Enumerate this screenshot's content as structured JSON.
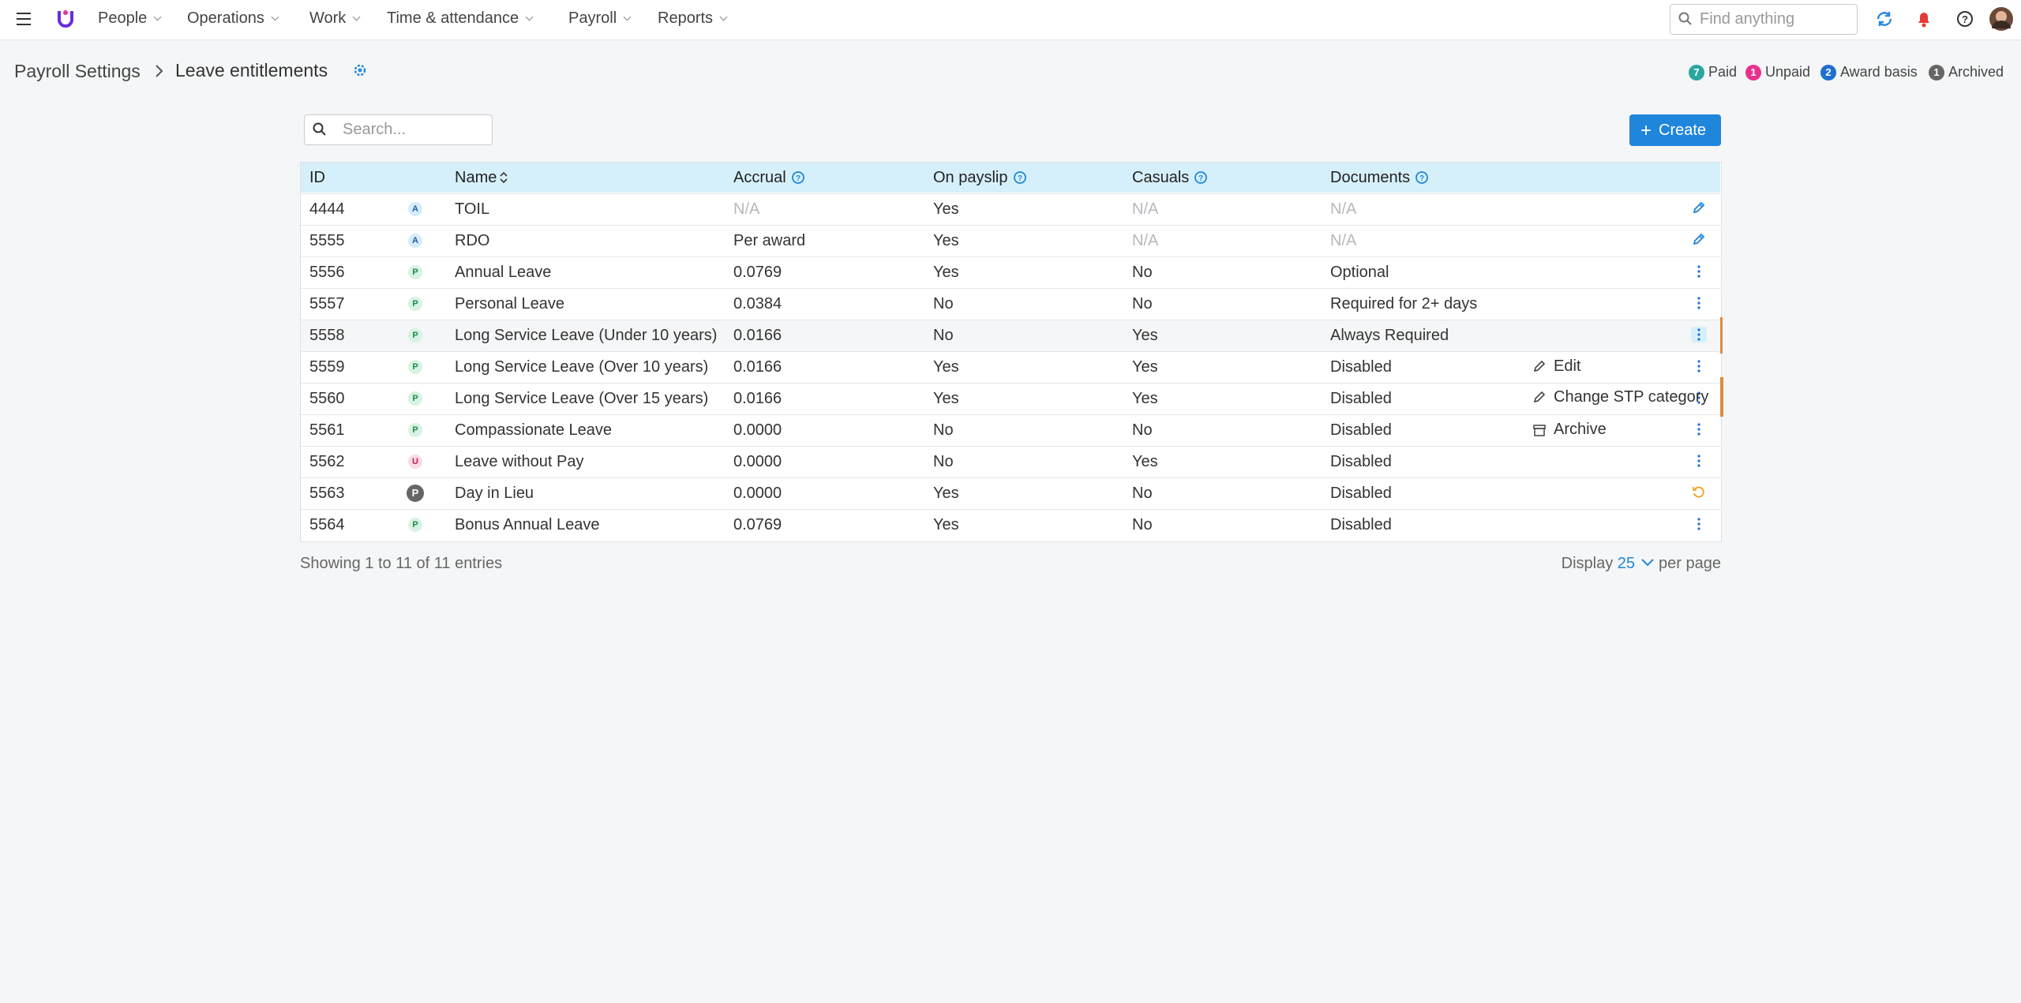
{
  "nav": {
    "items": [
      "People",
      "Operations",
      "Work",
      "Time & attendance",
      "Payroll",
      "Reports"
    ],
    "search_placeholder": "Find anything"
  },
  "breadcrumb": {
    "parent": "Payroll Settings",
    "current": "Leave entitlements"
  },
  "legend": [
    {
      "count": "7",
      "label": "Paid"
    },
    {
      "count": "1",
      "label": "Unpaid"
    },
    {
      "count": "2",
      "label": "Award basis"
    },
    {
      "count": "1",
      "label": "Archived"
    }
  ],
  "search": {
    "placeholder": "Search..."
  },
  "create_button": "Create",
  "table": {
    "headers": [
      "ID",
      "Name",
      "Accrual",
      "On payslip",
      "Casuals",
      "Documents"
    ],
    "rows": [
      {
        "id": "4444",
        "badge": "A",
        "name": "TOIL",
        "accrual": "N/A",
        "payslip": "Yes",
        "casuals": "N/A",
        "documents": "N/A"
      },
      {
        "id": "5555",
        "badge": "A",
        "name": "RDO",
        "accrual": "Per award",
        "payslip": "Yes",
        "casuals": "N/A",
        "documents": "N/A"
      },
      {
        "id": "5556",
        "badge": "P",
        "name": "Annual Leave",
        "accrual": "0.0769",
        "payslip": "Yes",
        "casuals": "No",
        "documents": "Optional"
      },
      {
        "id": "5557",
        "badge": "P",
        "name": "Personal Leave",
        "accrual": "0.0384",
        "payslip": "No",
        "casuals": "No",
        "documents": "Required for 2+ days"
      },
      {
        "id": "5558",
        "badge": "P",
        "name": "Long Service Leave (Under 10 years)",
        "accrual": "0.0166",
        "payslip": "No",
        "casuals": "Yes",
        "documents": "Always Required"
      },
      {
        "id": "5559",
        "badge": "P",
        "name": "Long Service Leave (Over 10 years)",
        "accrual": "0.0166",
        "payslip": "Yes",
        "casuals": "Yes",
        "documents": "Disabled"
      },
      {
        "id": "5560",
        "badge": "P",
        "name": "Long Service Leave (Over 15 years)",
        "accrual": "0.0166",
        "payslip": "Yes",
        "casuals": "Yes",
        "documents": "Disabled"
      },
      {
        "id": "5561",
        "badge": "P",
        "name": "Compassionate Leave",
        "accrual": "0.0000",
        "payslip": "No",
        "casuals": "No",
        "documents": "Disabled"
      },
      {
        "id": "5562",
        "badge": "U",
        "name": "Leave without Pay",
        "accrual": "0.0000",
        "payslip": "No",
        "casuals": "Yes",
        "documents": "Disabled"
      },
      {
        "id": "5563",
        "badge": "P",
        "name": "Day in Lieu",
        "accrual": "0.0000",
        "payslip": "Yes",
        "casuals": "No",
        "documents": "Disabled"
      },
      {
        "id": "5564",
        "badge": "P",
        "name": "Bonus Annual Leave",
        "accrual": "0.0769",
        "payslip": "Yes",
        "casuals": "No",
        "documents": "Disabled"
      }
    ]
  },
  "menu": [
    "Edit",
    "Change STP category",
    "Archive"
  ],
  "footer": {
    "showing": "Showing 1 to 11 of 11 entries",
    "display": "Display",
    "per_page_value": "25",
    "per_page": "per page"
  }
}
